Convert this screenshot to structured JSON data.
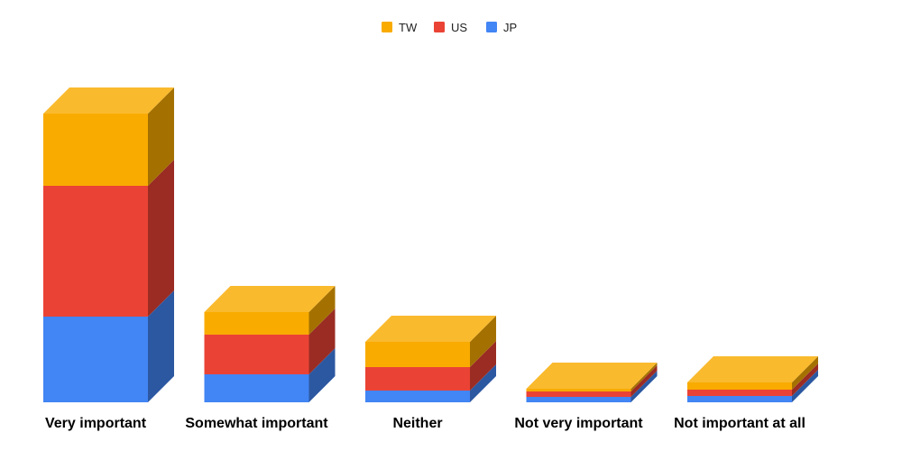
{
  "chart_data": {
    "type": "bar",
    "stacked": true,
    "three_d": true,
    "categories": [
      "Very important",
      "Somewhat important",
      "Neither",
      "Not very important",
      "Not important at all"
    ],
    "series": [
      {
        "name": "JP",
        "color": "#4285f4",
        "values": [
          95,
          31,
          13,
          6,
          7
        ]
      },
      {
        "name": "US",
        "color": "#ea4335",
        "values": [
          145,
          44,
          26,
          6,
          7
        ]
      },
      {
        "name": "TW",
        "color": "#f9ab00",
        "values": [
          80,
          25,
          28,
          3,
          8
        ]
      }
    ],
    "ylim": [
      0,
      320
    ],
    "grid": false,
    "legend": {
      "position": "top-center",
      "order": [
        "TW",
        "US",
        "JP"
      ]
    }
  }
}
